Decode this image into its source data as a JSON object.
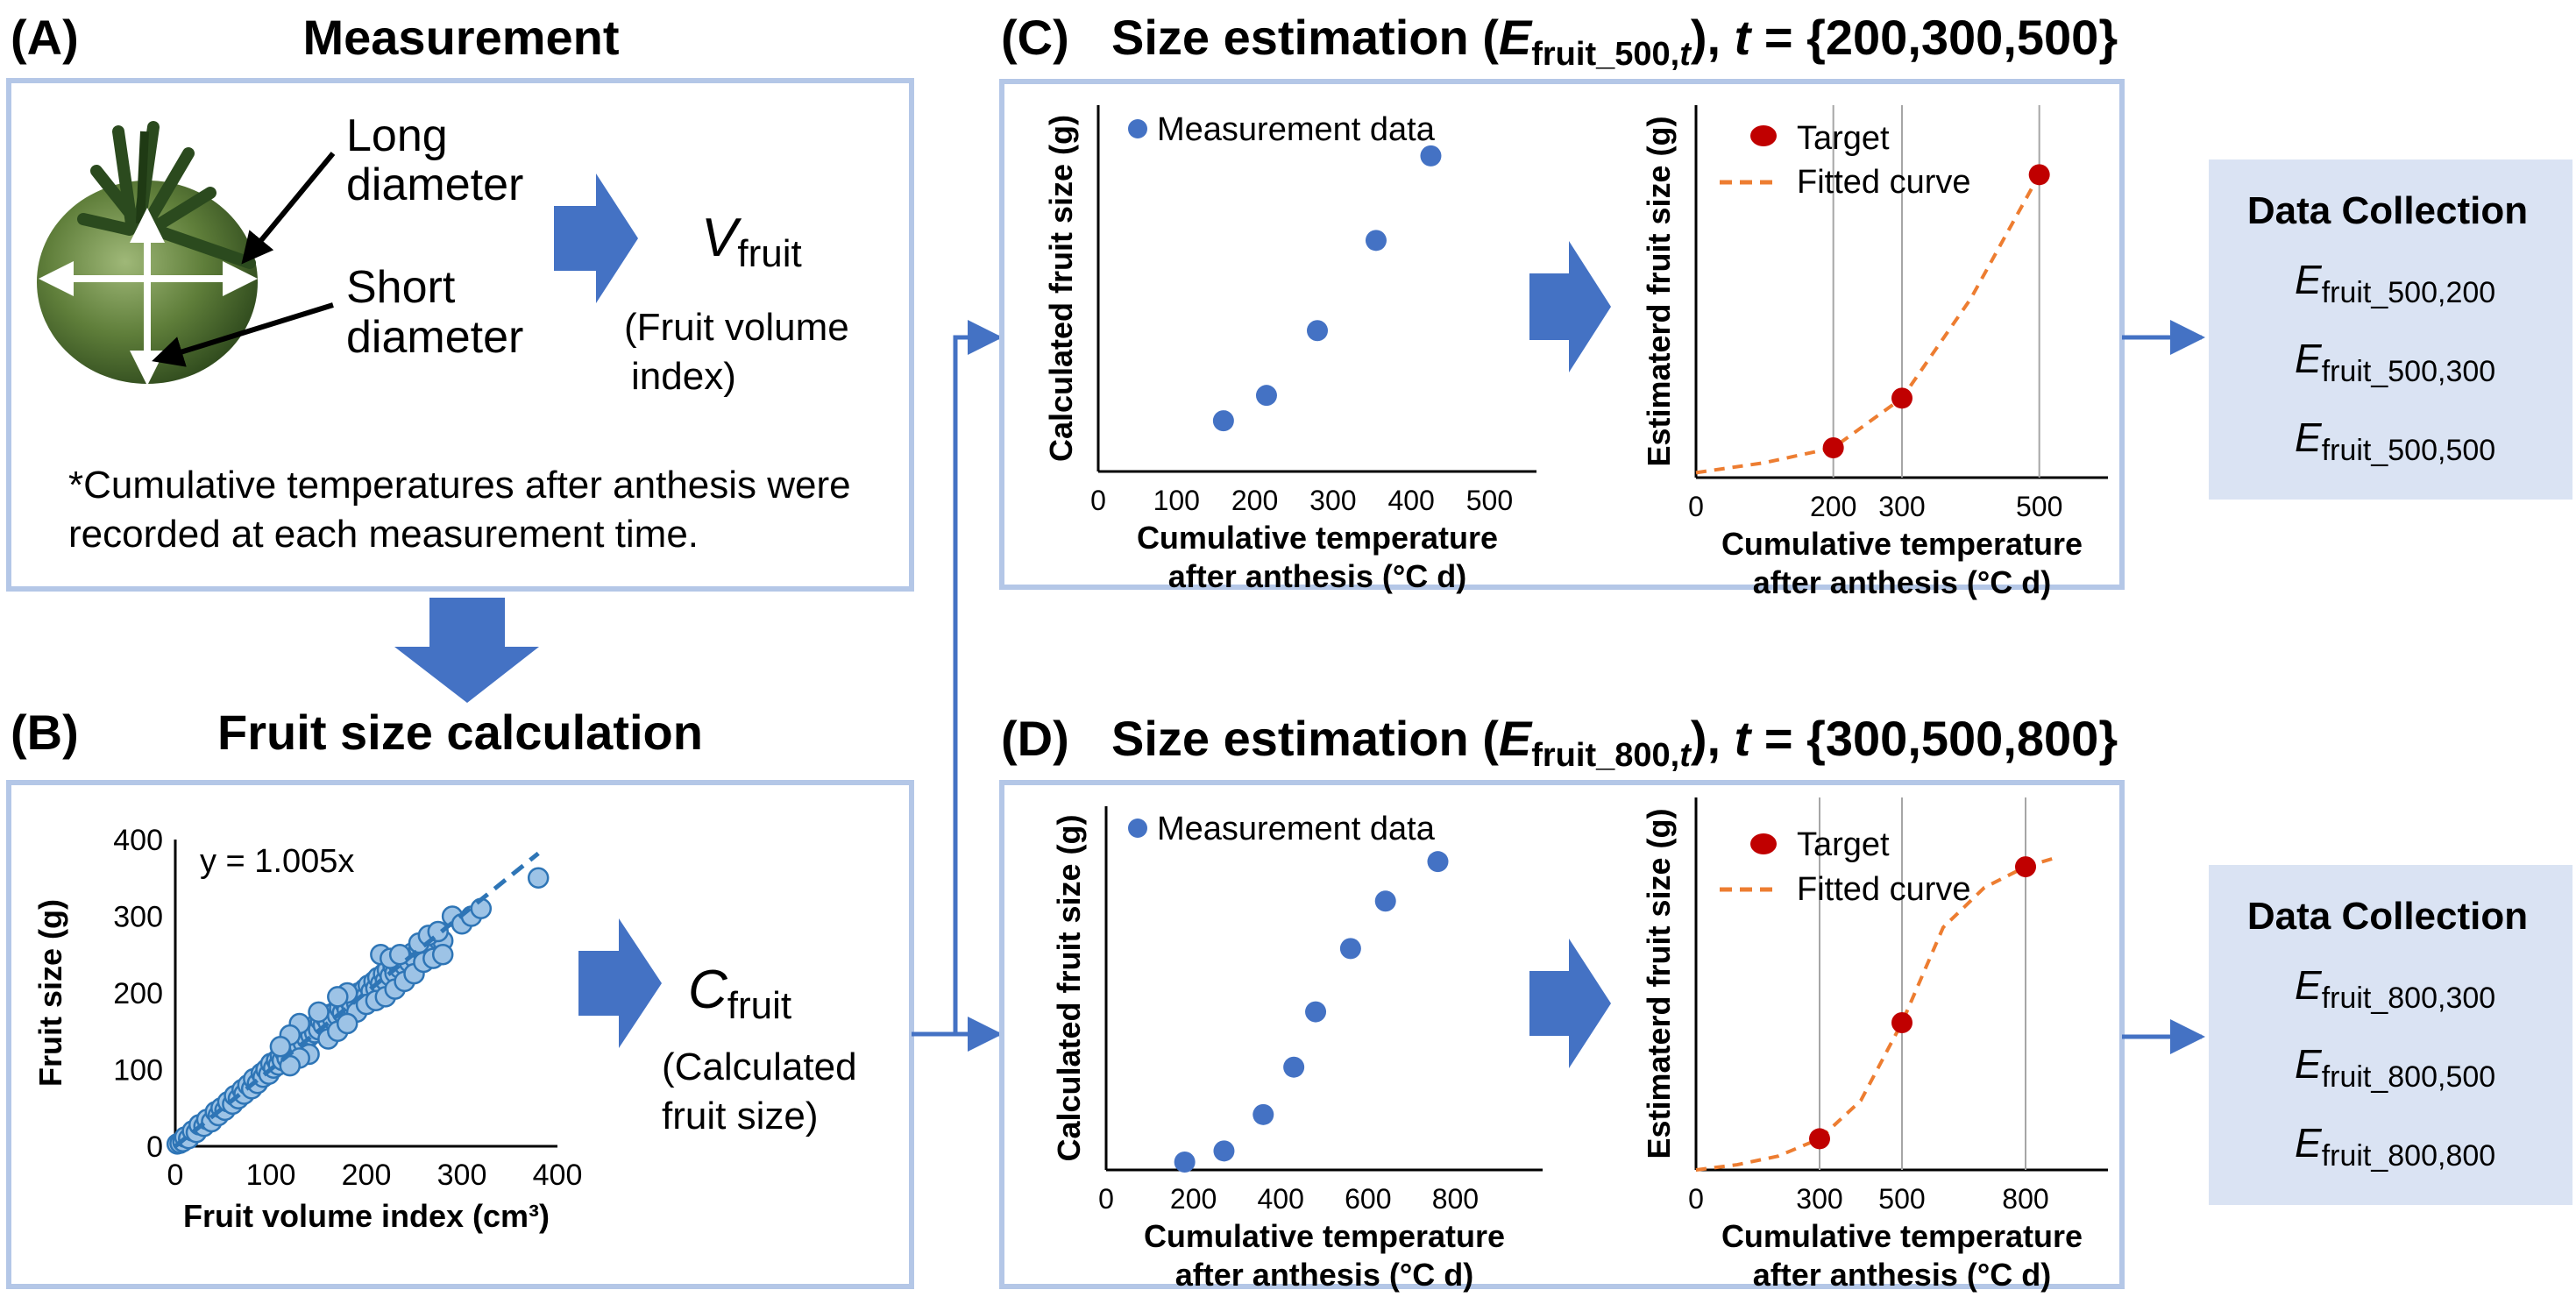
{
  "panelA": {
    "letter": "(A)",
    "title": "Measurement",
    "long_diameter": [
      "Long",
      "diameter"
    ],
    "short_diameter": [
      "Short",
      "diameter"
    ],
    "vfruit_main": "V",
    "vfruit_sub": "fruit",
    "vfruit_desc": [
      "(Fruit volume",
      "index)"
    ],
    "note": [
      "*Cumulative temperatures after anthesis were",
      "recorded at each measurement time."
    ]
  },
  "panelB": {
    "letter": "(B)",
    "title": "Fruit size calculation",
    "equation": "y = 1.005x",
    "cfruit_main": "C",
    "cfruit_sub": "fruit",
    "cfruit_desc": [
      "(Calculated",
      "fruit size)"
    ]
  },
  "panelC": {
    "letter": "(C)",
    "title_pre": "Size estimation (",
    "title_E": "E",
    "title_sub": "fruit_500,",
    "title_t": "t",
    "title_close": "), ",
    "title_t2": "t",
    "title_set": " = {200,300,500}",
    "legend_meas": "Measurement data",
    "legend_target": "Target",
    "legend_fit": "Fitted curve"
  },
  "panelD": {
    "letter": "(D)",
    "title_pre": "Size estimation (",
    "title_E": "E",
    "title_sub": "fruit_800,",
    "title_t": "t",
    "title_close": "), ",
    "title_t2": "t",
    "title_set": " = {300,500,800}",
    "legend_meas": "Measurement data",
    "legend_target": "Target",
    "legend_fit": "Fitted curve"
  },
  "collectionC": {
    "title": "Data Collection",
    "items": [
      {
        "main": "E",
        "sub": "fruit_500,200"
      },
      {
        "main": "E",
        "sub": "fruit_500,300"
      },
      {
        "main": "E",
        "sub": "fruit_500,500"
      }
    ]
  },
  "collectionD": {
    "title": "Data Collection",
    "items": [
      {
        "main": "E",
        "sub": "fruit_800,300"
      },
      {
        "main": "E",
        "sub": "fruit_800,500"
      },
      {
        "main": "E",
        "sub": "fruit_800,800"
      }
    ]
  },
  "chart_data": [
    {
      "id": "B",
      "type": "scatter",
      "title": "",
      "xlabel": "Fruit volume index (cm³)",
      "ylabel": "Fruit size (g)",
      "xlim": [
        0,
        400
      ],
      "ylim": [
        0,
        400
      ],
      "xticks": [
        0,
        100,
        200,
        300,
        400
      ],
      "yticks": [
        0,
        100,
        200,
        300,
        400
      ],
      "fit": {
        "slope": 1.005,
        "label": "y = 1.005x",
        "x_range": [
          0,
          380
        ]
      },
      "points": [
        [
          2,
          3
        ],
        [
          5,
          4
        ],
        [
          8,
          6
        ],
        [
          10,
          12
        ],
        [
          14,
          10
        ],
        [
          18,
          20
        ],
        [
          22,
          18
        ],
        [
          25,
          28
        ],
        [
          30,
          26
        ],
        [
          33,
          35
        ],
        [
          38,
          32
        ],
        [
          42,
          45
        ],
        [
          45,
          40
        ],
        [
          48,
          50
        ],
        [
          52,
          47
        ],
        [
          55,
          58
        ],
        [
          60,
          55
        ],
        [
          62,
          66
        ],
        [
          66,
          62
        ],
        [
          70,
          74
        ],
        [
          72,
          68
        ],
        [
          76,
          80
        ],
        [
          80,
          75
        ],
        [
          82,
          88
        ],
        [
          86,
          82
        ],
        [
          90,
          95
        ],
        [
          92,
          90
        ],
        [
          95,
          100
        ],
        [
          98,
          94
        ],
        [
          100,
          108
        ],
        [
          103,
          102
        ],
        [
          106,
          112
        ],
        [
          108,
          106
        ],
        [
          110,
          118
        ],
        [
          112,
          112
        ],
        [
          115,
          122
        ],
        [
          117,
          115
        ],
        [
          120,
          128
        ],
        [
          122,
          120
        ],
        [
          124,
          132
        ],
        [
          126,
          126
        ],
        [
          128,
          138
        ],
        [
          130,
          130
        ],
        [
          132,
          142
        ],
        [
          134,
          135
        ],
        [
          136,
          148
        ],
        [
          138,
          140
        ],
        [
          140,
          150
        ],
        [
          142,
          145
        ],
        [
          144,
          155
        ],
        [
          146,
          148
        ],
        [
          148,
          160
        ],
        [
          150,
          152
        ],
        [
          152,
          164
        ],
        [
          155,
          158
        ],
        [
          157,
          168
        ],
        [
          160,
          162
        ],
        [
          162,
          172
        ],
        [
          165,
          165
        ],
        [
          168,
          176
        ],
        [
          170,
          170
        ],
        [
          172,
          180
        ],
        [
          175,
          174
        ],
        [
          178,
          185
        ],
        [
          180,
          178
        ],
        [
          182,
          190
        ],
        [
          185,
          182
        ],
        [
          188,
          195
        ],
        [
          190,
          186
        ],
        [
          192,
          200
        ],
        [
          195,
          192
        ],
        [
          198,
          205
        ],
        [
          200,
          196
        ],
        [
          202,
          210
        ],
        [
          205,
          202
        ],
        [
          208,
          215
        ],
        [
          210,
          206
        ],
        [
          212,
          220
        ],
        [
          215,
          212
        ],
        [
          218,
          225
        ],
        [
          220,
          216
        ],
        [
          222,
          230
        ],
        [
          225,
          222
        ],
        [
          228,
          235
        ],
        [
          230,
          226
        ],
        [
          232,
          240
        ],
        [
          235,
          232
        ],
        [
          238,
          244
        ],
        [
          240,
          236
        ],
        [
          242,
          248
        ],
        [
          245,
          240
        ],
        [
          248,
          252
        ],
        [
          250,
          246
        ],
        [
          255,
          258
        ],
        [
          260,
          254
        ],
        [
          265,
          262
        ],
        [
          270,
          258
        ],
        [
          275,
          270
        ],
        [
          280,
          268
        ],
        [
          290,
          300
        ],
        [
          300,
          290
        ],
        [
          310,
          300
        ],
        [
          320,
          310
        ],
        [
          380,
          350
        ],
        [
          215,
          250
        ],
        [
          225,
          245
        ],
        [
          235,
          250
        ],
        [
          255,
          265
        ],
        [
          265,
          275
        ],
        [
          275,
          280
        ],
        [
          180,
          200
        ],
        [
          170,
          195
        ],
        [
          150,
          175
        ],
        [
          130,
          160
        ],
        [
          120,
          145
        ],
        [
          110,
          130
        ],
        [
          190,
          175
        ],
        [
          200,
          185
        ],
        [
          210,
          190
        ],
        [
          220,
          195
        ],
        [
          230,
          205
        ],
        [
          240,
          215
        ],
        [
          250,
          225
        ],
        [
          260,
          240
        ],
        [
          270,
          245
        ],
        [
          280,
          250
        ],
        [
          140,
          120
        ],
        [
          130,
          115
        ],
        [
          120,
          105
        ],
        [
          160,
          140
        ],
        [
          170,
          150
        ],
        [
          180,
          160
        ]
      ]
    },
    {
      "id": "C-left",
      "type": "scatter",
      "title": "",
      "xlabel": "Cumulative temperature after anthesis (°C d)",
      "ylabel": "Calculated fruit size (g)",
      "xlim": [
        0,
        560
      ],
      "xticks": [
        0,
        100,
        200,
        300,
        400,
        500
      ],
      "series": [
        {
          "name": "Measurement data",
          "x": [
            160,
            215,
            280,
            355,
            425
          ],
          "y": [
            18,
            27,
            50,
            82,
            112
          ]
        }
      ]
    },
    {
      "id": "C-right",
      "type": "line",
      "title": "",
      "xlabel": "Cumulative temperature after anthesis (°C d)",
      "ylabel": "Estimaterd fruit size (g)",
      "xlim": [
        0,
        600
      ],
      "xticks": [
        0,
        200,
        300,
        500
      ],
      "series": [
        {
          "name": "Target",
          "x": [
            200,
            300,
            500
          ],
          "y": [
            12,
            32,
            122
          ]
        },
        {
          "name": "Fitted curve",
          "x": [
            0,
            100,
            200,
            300,
            400,
            500
          ],
          "y": [
            2,
            6,
            12,
            32,
            72,
            122
          ]
        }
      ]
    },
    {
      "id": "D-left",
      "type": "scatter",
      "title": "",
      "xlabel": "Cumulative temperature after anthesis (°C d)",
      "ylabel": "Calculated fruit size (g)",
      "xlim": [
        0,
        1000
      ],
      "xticks": [
        0,
        200,
        400,
        600,
        800
      ],
      "series": [
        {
          "name": "Measurement data",
          "x": [
            180,
            270,
            360,
            430,
            480,
            560,
            640,
            760
          ],
          "y": [
            5,
            12,
            35,
            65,
            100,
            140,
            170,
            195
          ]
        }
      ]
    },
    {
      "id": "D-right",
      "type": "line",
      "title": "",
      "xlabel": "Cumulative temperature after anthesis (°C d)",
      "ylabel": "Estimaterd fruit size (g)",
      "xlim": [
        0,
        1000
      ],
      "xticks": [
        0,
        300,
        500,
        800
      ],
      "series": [
        {
          "name": "Target",
          "x": [
            300,
            500,
            800
          ],
          "y": [
            18,
            85,
            175
          ]
        },
        {
          "name": "Fitted curve",
          "x": [
            0,
            100,
            200,
            300,
            400,
            500,
            600,
            700,
            800,
            870
          ],
          "y": [
            0,
            3,
            8,
            18,
            40,
            85,
            140,
            163,
            175,
            180
          ]
        }
      ]
    }
  ]
}
